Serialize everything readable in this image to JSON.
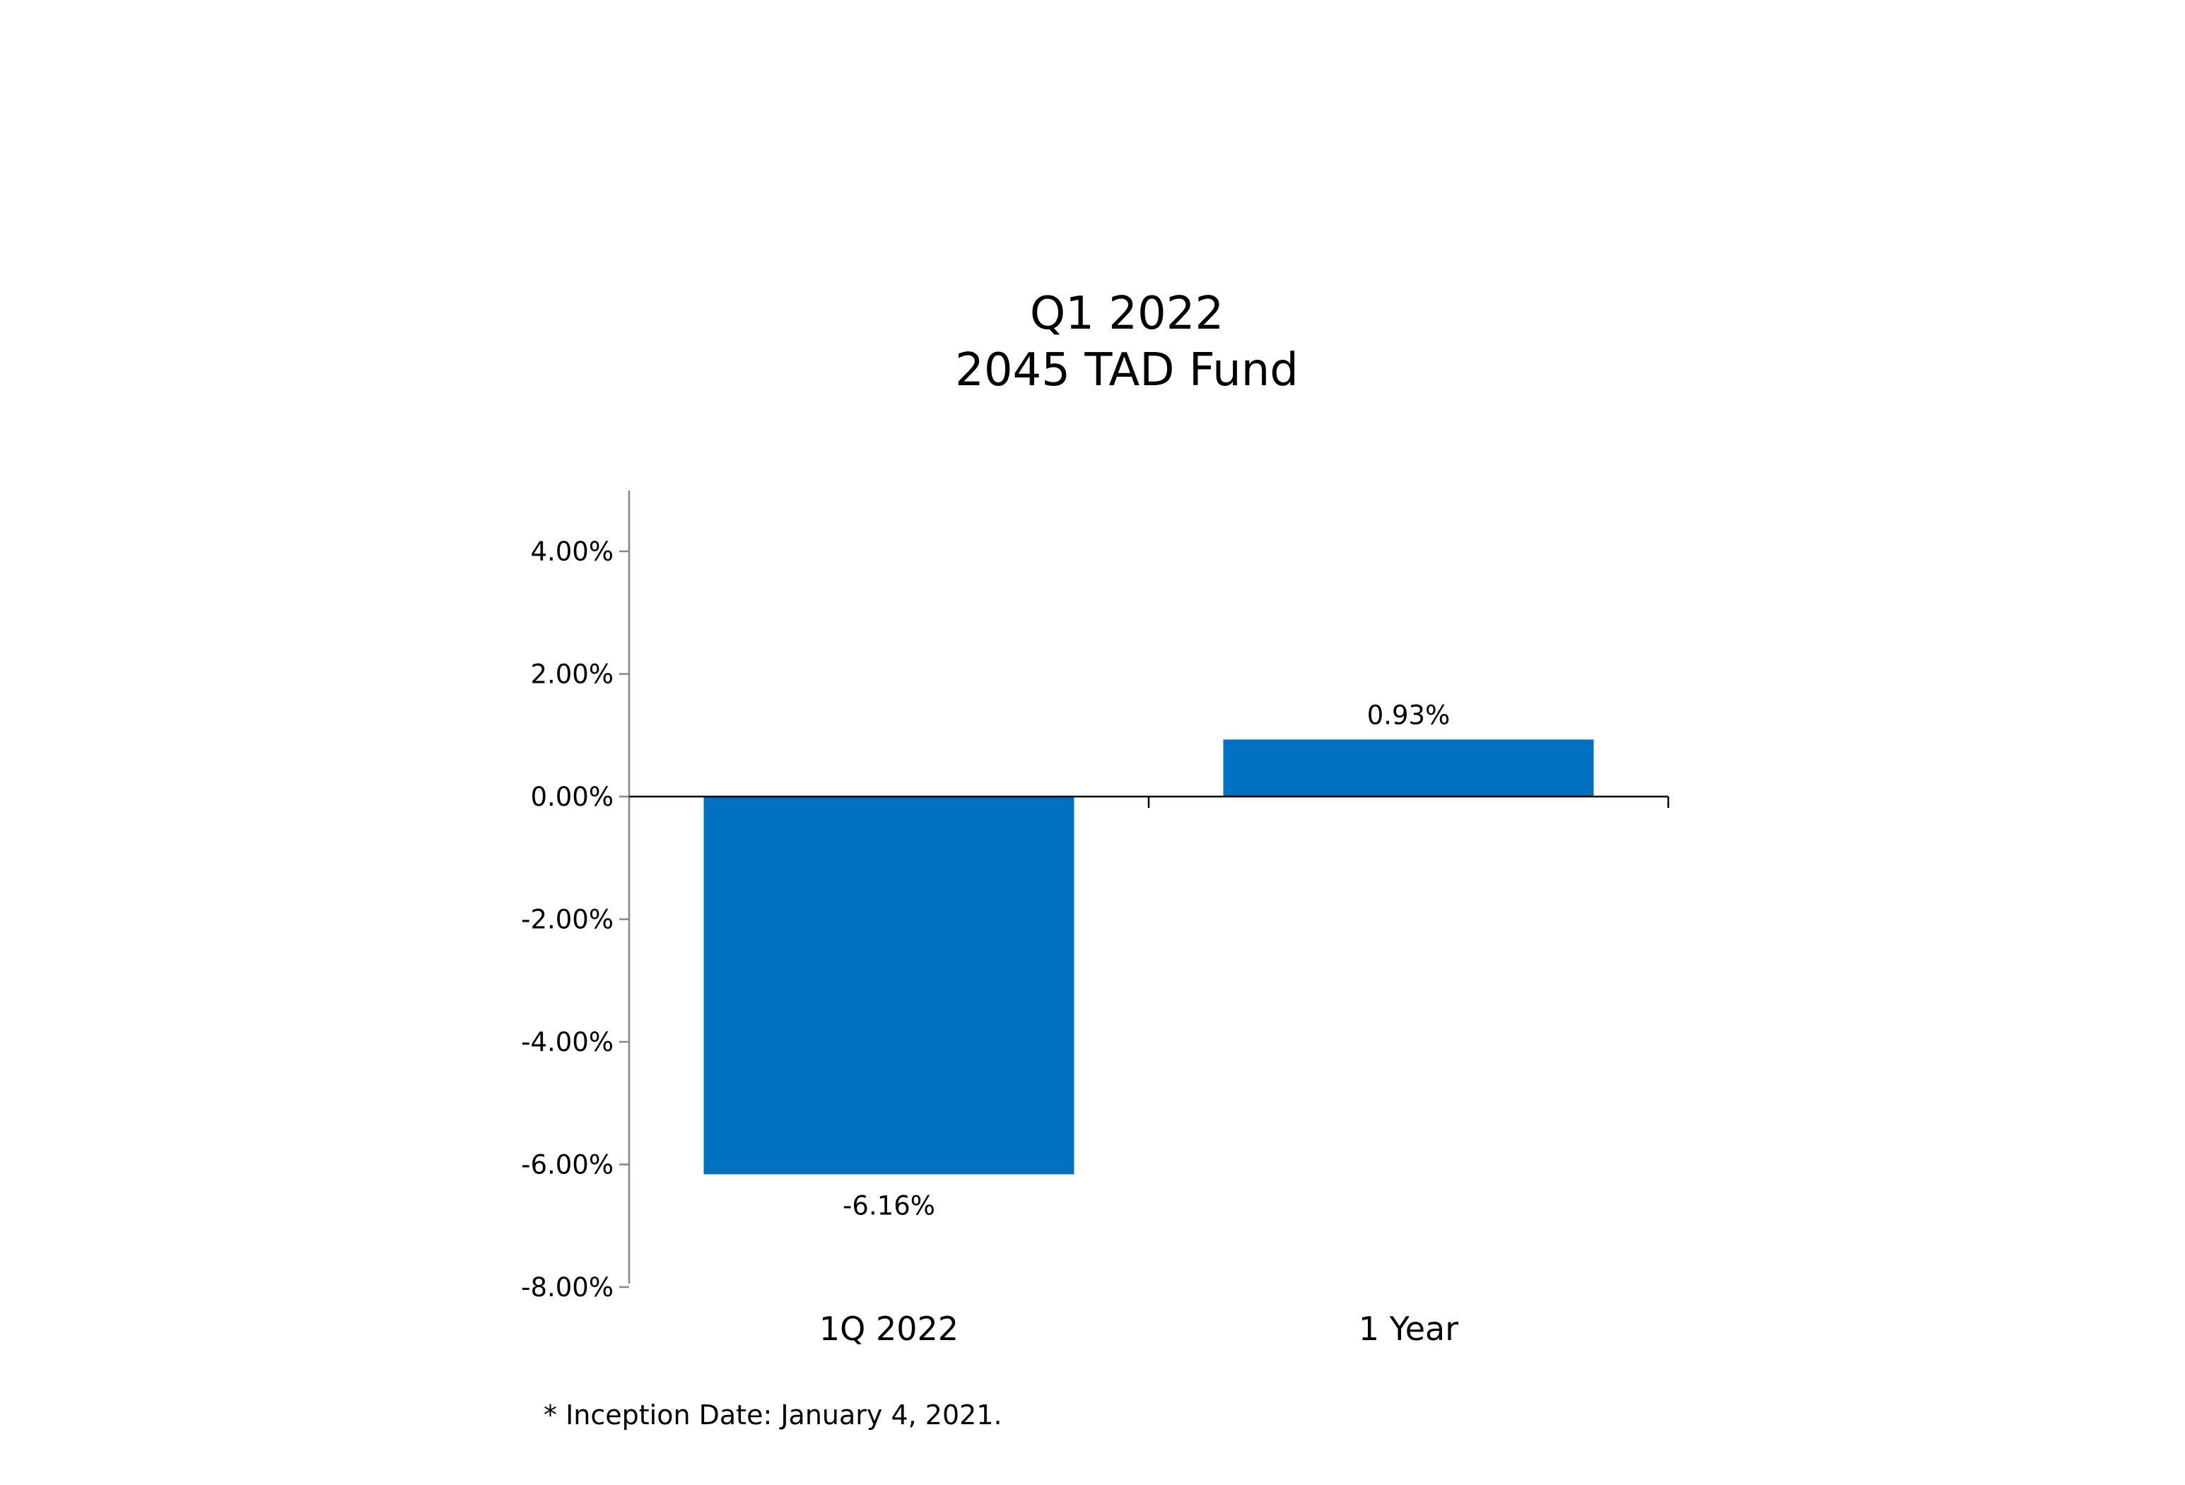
{
  "title": {
    "line1": "Q1 2022",
    "line2": "2045 TAD Fund"
  },
  "chart_data": {
    "type": "bar",
    "categories": [
      "1Q 2022",
      "1 Year"
    ],
    "values": [
      -6.16,
      0.93
    ],
    "data_labels": [
      "-6.16%",
      "0.93%"
    ],
    "ylim": [
      -8,
      5
    ],
    "ytick_values": [
      4,
      2,
      0,
      -2,
      -4,
      -6,
      -8
    ],
    "ytick_labels": [
      "4.00%",
      "2.00%",
      "0.00%",
      "-2.00%",
      "-4.00%",
      "-6.00%",
      "-8.00%"
    ],
    "xlabel": "",
    "ylabel": "",
    "grid": false,
    "legend": "none",
    "bar_color": "#0070C0"
  },
  "footnote": "* Inception Date: January 4, 2021."
}
